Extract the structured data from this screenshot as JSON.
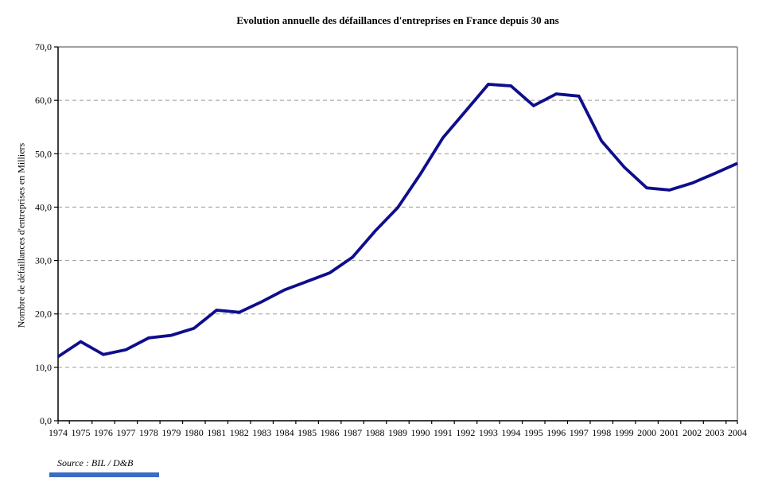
{
  "colors": {
    "line": "#0e0e8c",
    "grid": "#999999",
    "border": "#808080",
    "axis": "#000000",
    "bottom_bar": "#3a6bc5"
  },
  "chart_data": {
    "type": "line",
    "title": "Evolution annuelle des défaillances d'entreprises en France depuis 30 ans",
    "xlabel": "",
    "ylabel": "Nombre de défaillances d'entreprises en Milliers",
    "source": "Source : BIL / D&B",
    "x": [
      1974,
      1975,
      1976,
      1977,
      1978,
      1979,
      1980,
      1981,
      1982,
      1983,
      1984,
      1985,
      1986,
      1987,
      1988,
      1989,
      1990,
      1991,
      1992,
      1993,
      1994,
      1995,
      1996,
      1997,
      1998,
      1999,
      2000,
      2001,
      2002,
      2003,
      2004
    ],
    "values": [
      12.0,
      14.8,
      12.4,
      13.3,
      15.5,
      16.0,
      17.3,
      20.7,
      20.3,
      22.3,
      24.5,
      26.1,
      27.7,
      30.6,
      35.5,
      39.9,
      46.2,
      53.0,
      58.0,
      63.0,
      62.7,
      59.0,
      61.2,
      60.8,
      52.4,
      47.5,
      43.6,
      43.2,
      44.5,
      46.3,
      48.2
    ],
    "ylim": [
      0,
      70
    ],
    "ytick_step": 10,
    "ytick_labels": [
      "0,0",
      "10,0",
      "20,0",
      "30,0",
      "40,0",
      "50,0",
      "60,0",
      "70,0"
    ],
    "grid": "horizontal-dashed",
    "legend": "none"
  }
}
